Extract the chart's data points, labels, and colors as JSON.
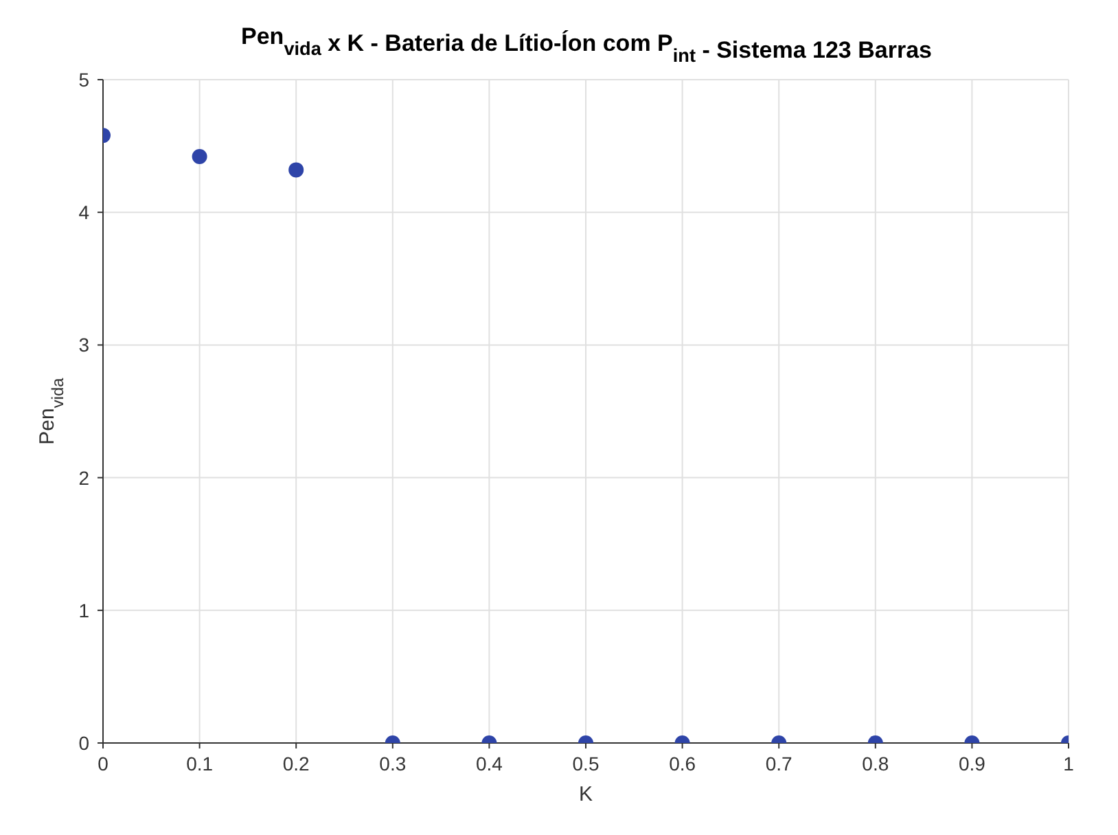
{
  "chart_data": {
    "type": "scatter",
    "title": "Pen$_{vida}$ x K - Bateria de Lítio-Íon com P$_{int}$ - Sistema 123 Barras",
    "xlabel": "K",
    "ylabel": "Pen$_{vida}$",
    "x": [
      0,
      0.1,
      0.2,
      0.3,
      0.4,
      0.5,
      0.6,
      0.7,
      0.8,
      0.9,
      1
    ],
    "series": [
      {
        "color": "#2e44a8",
        "values": [
          4.58,
          4.42,
          4.32,
          0,
          0,
          0,
          0,
          0,
          0,
          0,
          0
        ]
      }
    ],
    "xlim": [
      0,
      1
    ],
    "xticks": [
      0,
      0.1,
      0.2,
      0.3,
      0.4,
      0.5,
      0.6,
      0.7,
      0.8,
      0.9,
      1
    ],
    "ylim": [
      0,
      5
    ],
    "yticks": [
      0,
      1,
      2,
      3,
      4,
      5
    ],
    "grid": true,
    "marker": "circle"
  }
}
